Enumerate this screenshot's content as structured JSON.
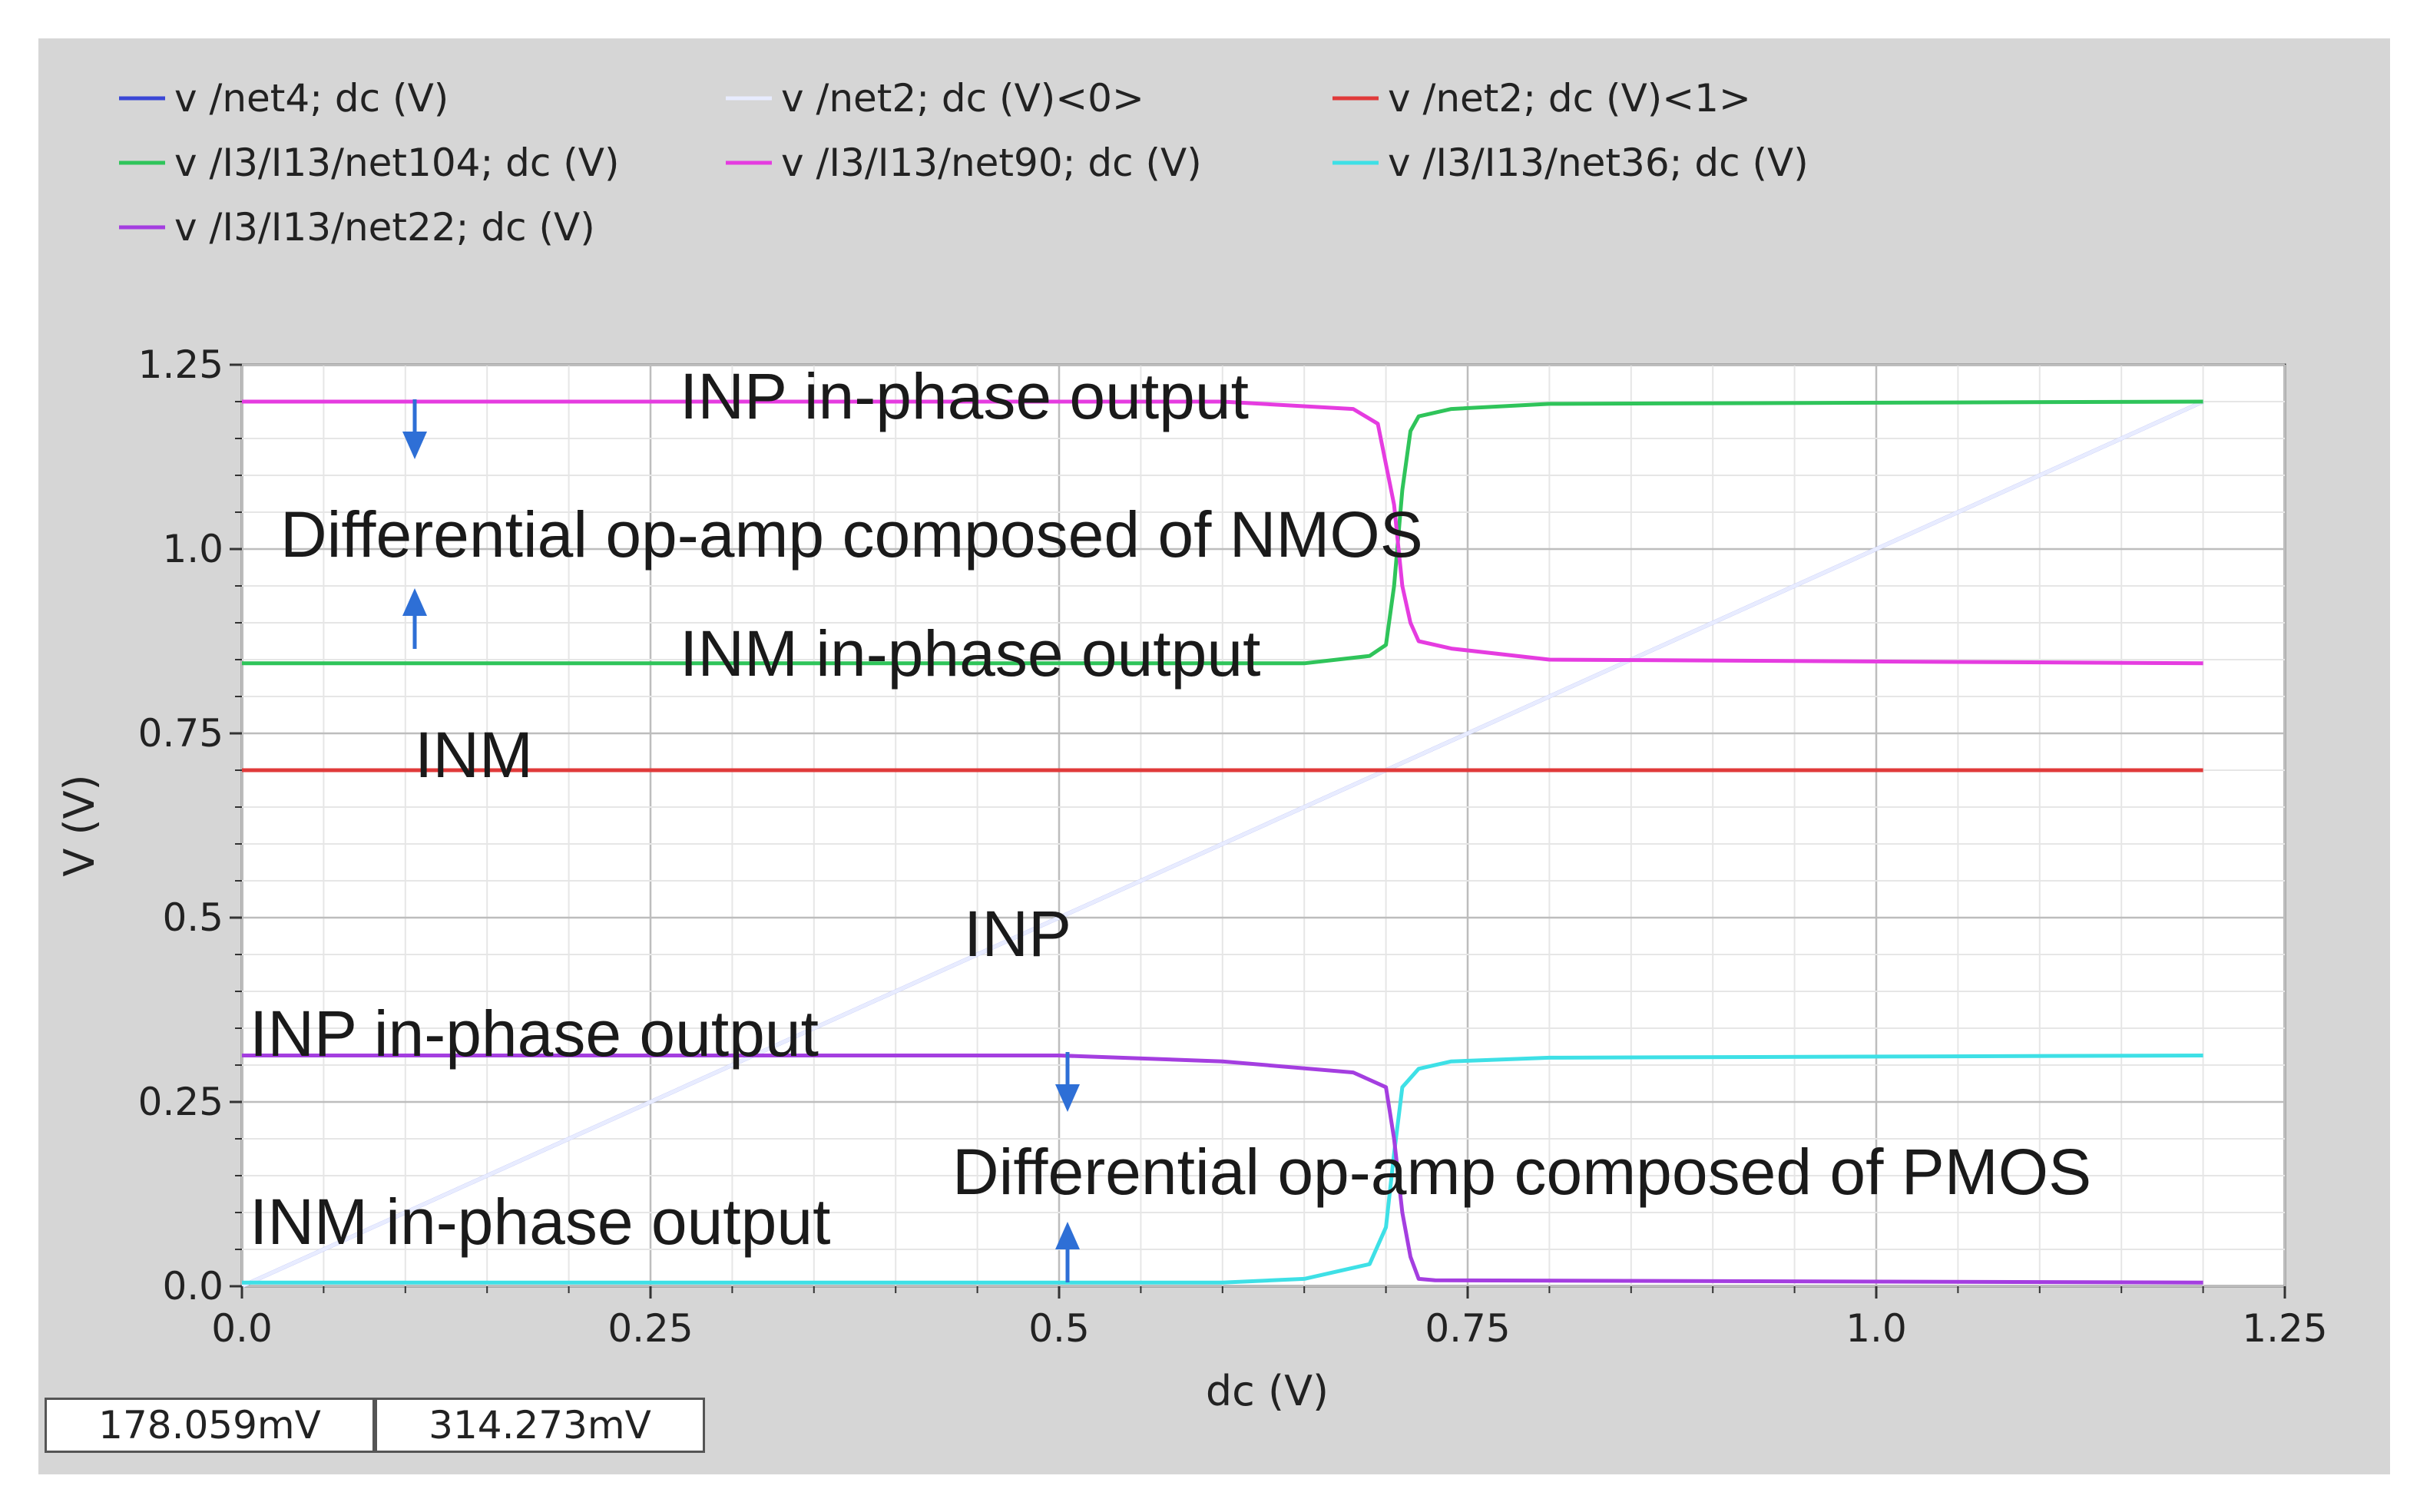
{
  "legend": [
    {
      "label": "v /net4; dc (V)",
      "color": "#3a47d6"
    },
    {
      "label": "v /net2; dc (V)<0>",
      "color": "#e8ecff"
    },
    {
      "label": "v /net2; dc (V)<1>",
      "color": "#e03a3a"
    },
    {
      "label": "v /I3/I13/net104; dc (V)",
      "color": "#2fc45a"
    },
    {
      "label": "v /I3/I13/net90; dc (V)",
      "color": "#e53ce0"
    },
    {
      "label": "v /I3/I13/net36; dc (V)",
      "color": "#3ee0e6"
    },
    {
      "label": "v /I3/I13/net22; dc (V)",
      "color": "#a43ee0"
    }
  ],
  "readouts": {
    "left": "178.059mV",
    "right": "314.273mV"
  },
  "annotations": {
    "inp_out_top": "INP in-phase output",
    "nmos": "Differential op-amp composed of NMOS",
    "inm_out_top": "INM in-phase output",
    "inm": "INM",
    "inp": "INP",
    "inp_out_bottom": "INP in-phase output",
    "pmos": "Differential op-amp composed of PMOS",
    "inm_out_bottom": "INM in-phase output"
  },
  "chart_data": {
    "type": "line",
    "title": "",
    "xlabel": "dc (V)",
    "ylabel": "V (V)",
    "xlim": [
      0.0,
      1.25
    ],
    "ylim": [
      0.0,
      1.25
    ],
    "xticks": [
      "0.0",
      "0.25",
      "0.5",
      "0.75",
      "1.0",
      "1.25"
    ],
    "yticks": [
      "0.0",
      "0.25",
      "0.5",
      "0.75",
      "1.0",
      "1.25"
    ],
    "grid": true,
    "series": [
      {
        "name": "v /net4; dc (V)",
        "color": "#3a47d6",
        "x": [
          0.0,
          1.2
        ],
        "y": [
          0.0,
          1.2
        ]
      },
      {
        "name": "v /net2; dc (V)<0>",
        "color": "#e8ecff",
        "x": [
          0.0,
          1.2
        ],
        "y": [
          0.0,
          1.2
        ]
      },
      {
        "name": "v /net2; dc (V)<1>",
        "color": "#e03a3a",
        "x": [
          0.0,
          1.2
        ],
        "y": [
          0.7,
          0.7
        ]
      },
      {
        "name": "v /I3/I13/net104; dc (V)",
        "color": "#2fc45a",
        "x": [
          0.0,
          0.65,
          0.69,
          0.7,
          0.705,
          0.71,
          0.715,
          0.72,
          0.74,
          0.8,
          1.2
        ],
        "y": [
          0.845,
          0.845,
          0.855,
          0.87,
          0.95,
          1.08,
          1.16,
          1.18,
          1.19,
          1.197,
          1.2
        ]
      },
      {
        "name": "v /I3/I13/net90; dc (V)",
        "color": "#e53ce0",
        "x": [
          0.0,
          0.6,
          0.68,
          0.695,
          0.705,
          0.71,
          0.715,
          0.72,
          0.74,
          0.8,
          1.2
        ],
        "y": [
          1.2,
          1.2,
          1.19,
          1.17,
          1.06,
          0.95,
          0.9,
          0.875,
          0.865,
          0.85,
          0.845
        ]
      },
      {
        "name": "v /I3/I13/net36; dc (V)",
        "color": "#3ee0e6",
        "x": [
          0.0,
          0.6,
          0.65,
          0.69,
          0.7,
          0.705,
          0.71,
          0.72,
          0.74,
          0.8,
          1.2
        ],
        "y": [
          0.005,
          0.005,
          0.01,
          0.03,
          0.08,
          0.18,
          0.27,
          0.295,
          0.305,
          0.31,
          0.313
        ]
      },
      {
        "name": "v /I3/I13/net22; dc (V)",
        "color": "#a43ee0",
        "x": [
          0.0,
          0.5,
          0.6,
          0.68,
          0.7,
          0.705,
          0.71,
          0.715,
          0.72,
          0.73,
          1.2
        ],
        "y": [
          0.313,
          0.313,
          0.305,
          0.29,
          0.27,
          0.2,
          0.1,
          0.04,
          0.01,
          0.008,
          0.005
        ]
      }
    ]
  }
}
